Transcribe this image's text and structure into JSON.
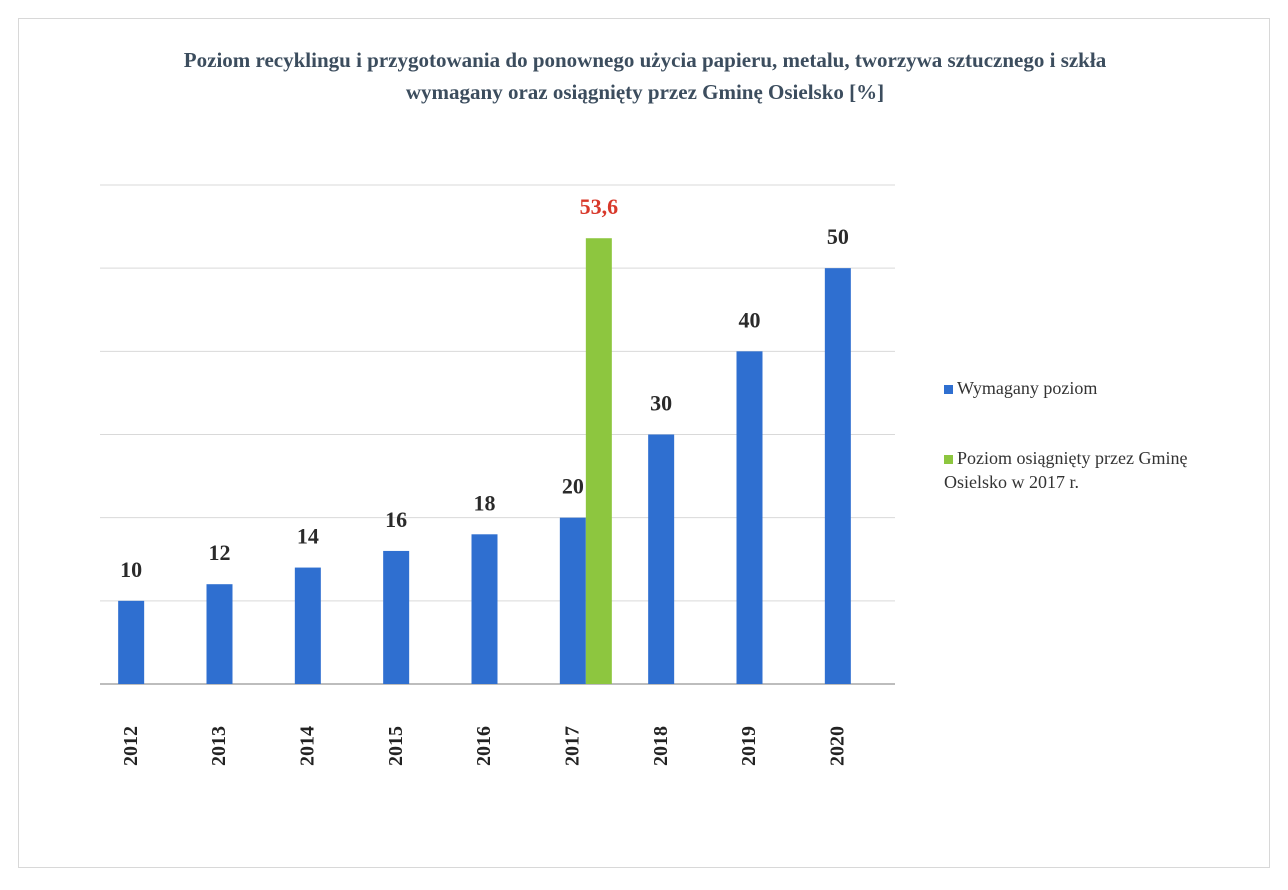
{
  "chart_data": {
    "type": "bar",
    "title": "Poziom recyklingu i przygotowania do ponownego użycia papieru, metalu, tworzywa sztucznego i szkła wymagany oraz osiągnięty przez Gminę Osielsko [%]",
    "categories": [
      "2012",
      "2013",
      "2014",
      "2015",
      "2016",
      "2017",
      "2018",
      "2019",
      "2020"
    ],
    "series": [
      {
        "name": "Wymagany poziom",
        "color": "#2f6fd0",
        "values": [
          10,
          12,
          14,
          16,
          18,
          20,
          30,
          40,
          50
        ]
      },
      {
        "name": "Poziom osiągnięty przez Gminę Osielsko w 2017 r.",
        "color": "#8dc63f",
        "values": [
          null,
          null,
          null,
          null,
          null,
          53.6,
          null,
          null,
          null
        ],
        "value_labels": [
          null,
          null,
          null,
          null,
          null,
          "53,6",
          null,
          null,
          null
        ],
        "label_color": "#d8382a"
      }
    ],
    "ylim": [
      0,
      60
    ],
    "yticks": [
      0,
      10,
      20,
      30,
      40,
      50,
      60
    ],
    "grid": true,
    "legend": "right"
  }
}
